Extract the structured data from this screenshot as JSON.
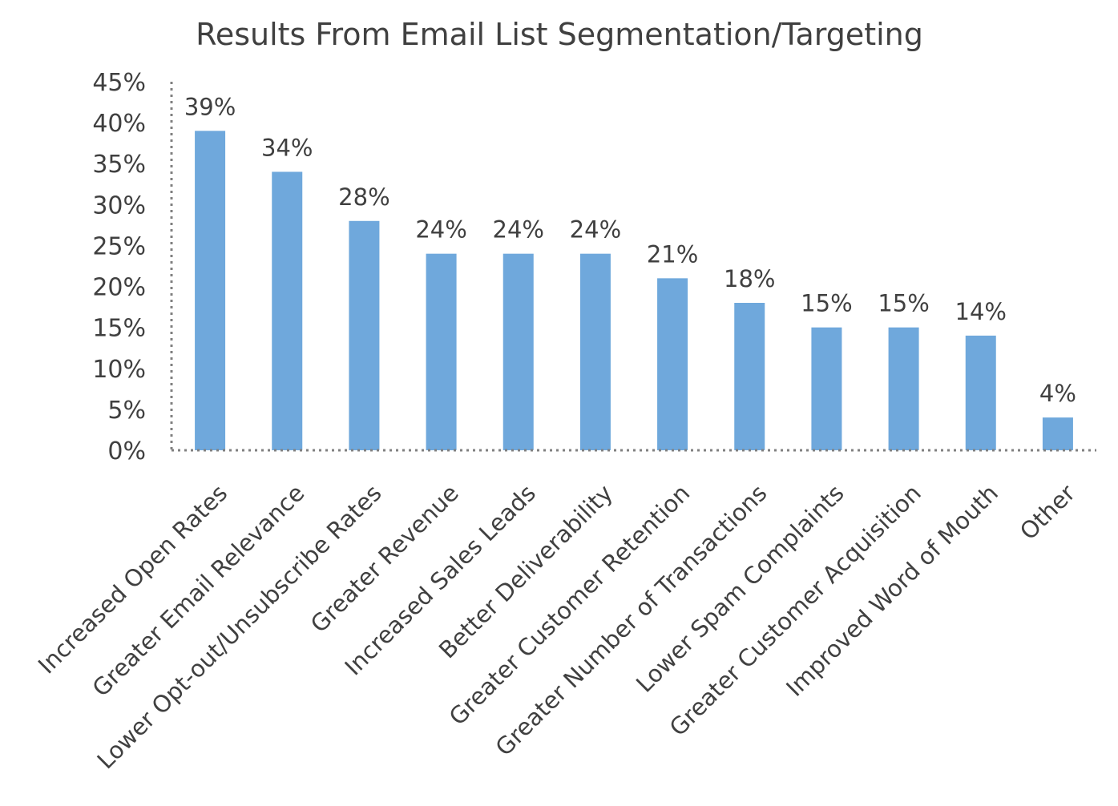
{
  "chart_data": {
    "type": "bar",
    "title": "Results From Email List Segmentation/Targeting",
    "xlabel": "",
    "ylabel": "",
    "categories": [
      "Increased Open Rates",
      "Greater Email Relevance",
      "Lower Opt-out/Unsubscribe Rates",
      "Greater Revenue",
      "Increased Sales Leads",
      "Better Deliverability",
      "Greater Customer Retention",
      "Greater Number of Transactions",
      "Lower Spam Complaints",
      "Greater Customer Acquisition",
      "Improved Word of Mouth",
      "Other"
    ],
    "values": [
      39,
      34,
      28,
      24,
      24,
      24,
      21,
      18,
      15,
      15,
      14,
      4
    ],
    "data_labels": [
      "39%",
      "34%",
      "28%",
      "24%",
      "24%",
      "24%",
      "21%",
      "18%",
      "15%",
      "15%",
      "14%",
      "4%"
    ],
    "ylim": [
      0,
      45
    ],
    "y_ticks": [
      0,
      5,
      10,
      15,
      20,
      25,
      30,
      35,
      40,
      45
    ],
    "y_tick_labels": [
      "0%",
      "5%",
      "10%",
      "15%",
      "20%",
      "25%",
      "30%",
      "35%",
      "40%",
      "45%"
    ],
    "grid": false,
    "legend": "none",
    "colors": {
      "bar": "#6fa8dc",
      "text": "#404040",
      "axis": "#808080"
    }
  }
}
